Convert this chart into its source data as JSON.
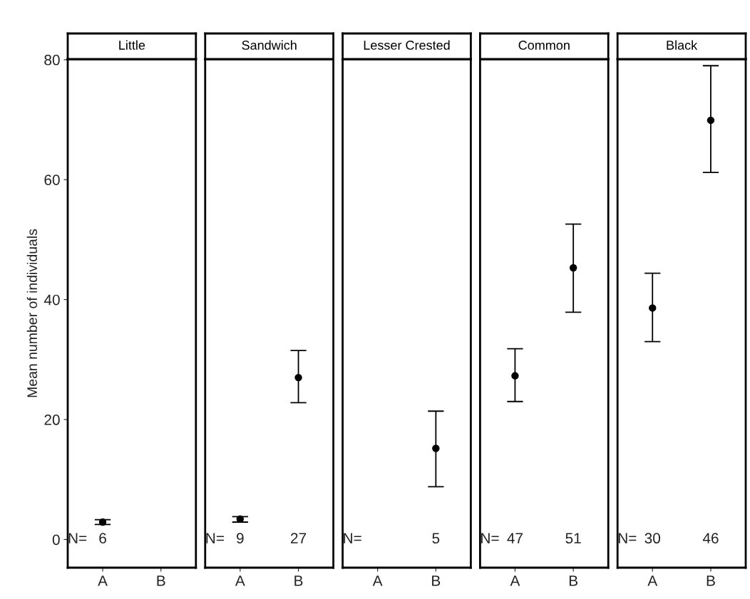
{
  "chart_data": [
    {
      "type": "scatter",
      "title": "Little",
      "ylabel": "Mean number of individuals",
      "categories": [
        "A",
        "B"
      ],
      "values": [
        2.9,
        null
      ],
      "errors": [
        [
          2.5,
          3.3
        ],
        null
      ],
      "color": "#000000",
      "marker": "circle",
      "ylim": [
        -4.7,
        80.1
      ],
      "yticks": [
        0,
        20,
        40,
        60,
        80
      ],
      "grid": false,
      "annotations": [
        "N=",
        "6"
      ]
    },
    {
      "type": "scatter",
      "title": "Sandwich",
      "categories": [
        "A",
        "B"
      ],
      "values": [
        3.4,
        27.0
      ],
      "errors": [
        [
          2.9,
          3.8
        ],
        [
          22.8,
          31.5
        ]
      ],
      "color": "#000000",
      "marker": "circle",
      "ylim": [
        -4.7,
        80.1
      ],
      "yticks": [
        0,
        20,
        40,
        60,
        80
      ],
      "tick_labels": "x",
      "grid": false,
      "annotations": [
        "N=",
        "9",
        "27"
      ]
    },
    {
      "type": "scatter",
      "title": "Lesser Crested",
      "categories": [
        "A",
        "B"
      ],
      "values": [
        null,
        15.2
      ],
      "errors": [
        null,
        [
          8.8,
          21.4
        ]
      ],
      "color": "#000000",
      "marker": "circle",
      "ylim": [
        -4.7,
        80.1
      ],
      "yticks": [
        0,
        20,
        40,
        60,
        80
      ],
      "tick_labels": "x",
      "grid": false,
      "annotations": [
        "N=",
        "5"
      ]
    },
    {
      "type": "scatter",
      "title": "Common",
      "categories": [
        "A",
        "B"
      ],
      "values": [
        27.3,
        45.3
      ],
      "errors": [
        [
          23.0,
          31.8
        ],
        [
          37.9,
          52.6
        ]
      ],
      "color": "#000000",
      "marker": "circle",
      "ylim": [
        -4.7,
        80.1
      ],
      "yticks": [
        0,
        20,
        40,
        60,
        80
      ],
      "tick_labels": "x",
      "grid": false,
      "annotations": [
        "N=",
        "47",
        "51"
      ]
    },
    {
      "type": "scatter",
      "title": "Black",
      "categories": [
        "A",
        "B"
      ],
      "values": [
        38.6,
        69.9
      ],
      "errors": [
        [
          33.0,
          44.4
        ],
        [
          61.2,
          79.0
        ]
      ],
      "color": "#000000",
      "marker": "circle",
      "ylim": [
        -4.7,
        80.1
      ],
      "yticks": [
        0,
        20,
        40,
        60,
        80
      ],
      "tick_labels": "x",
      "grid": false,
      "annotations": [
        "N=",
        "30",
        "46"
      ]
    }
  ]
}
